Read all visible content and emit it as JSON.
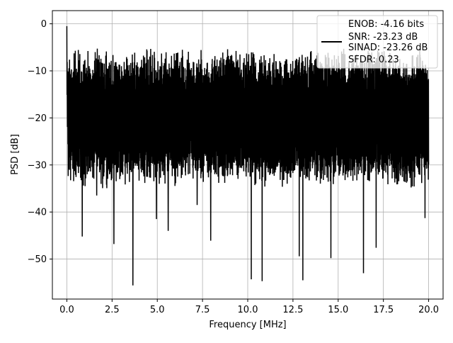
{
  "chart_data": {
    "type": "line",
    "title": "",
    "xlabel": "Frequency [MHz]",
    "ylabel": "PSD [dB]",
    "xlim": [
      -0.8,
      20.8
    ],
    "ylim": [
      -58.5,
      2.8
    ],
    "x_ticks": [
      0.0,
      2.5,
      5.0,
      7.5,
      10.0,
      12.5,
      15.0,
      17.5,
      20.0
    ],
    "x_tick_labels": [
      "0.0",
      "2.5",
      "5.0",
      "7.5",
      "10.0",
      "12.5",
      "15.0",
      "17.5",
      "20.0"
    ],
    "y_ticks": [
      0,
      -10,
      -20,
      -30,
      -40,
      -50
    ],
    "y_tick_labels": [
      "0",
      "−10",
      "−20",
      "−30",
      "−40",
      "−50"
    ],
    "grid": true,
    "legend_position": "top-right",
    "legend_lines": [
      "ENOB: -4.16 bits",
      "SNR: -23.23 dB",
      "SINAD: -23.26 dB",
      "SFDR: 0.23"
    ],
    "series_color": "#000000",
    "series": [
      {
        "x_range": [
          0,
          20
        ],
        "peak": {
          "x": 0.0,
          "y": -0.5
        },
        "upper_envelope_db": -8,
        "lower_envelope_db": -32,
        "deep_nulls": [
          {
            "x": 0.85,
            "y": -45.2
          },
          {
            "x": 1.65,
            "y": -36.5
          },
          {
            "x": 2.6,
            "y": -46.8
          },
          {
            "x": 3.65,
            "y": -55.6
          },
          {
            "x": 4.95,
            "y": -41.5
          },
          {
            "x": 5.6,
            "y": -44.0
          },
          {
            "x": 7.2,
            "y": -38.5
          },
          {
            "x": 7.95,
            "y": -46.1
          },
          {
            "x": 10.2,
            "y": -54.3
          },
          {
            "x": 10.8,
            "y": -54.7
          },
          {
            "x": 12.85,
            "y": -49.4
          },
          {
            "x": 13.05,
            "y": -54.5
          },
          {
            "x": 14.6,
            "y": -49.8
          },
          {
            "x": 16.4,
            "y": -53.0
          },
          {
            "x": 17.1,
            "y": -47.6
          },
          {
            "x": 19.8,
            "y": -41.3
          }
        ]
      }
    ]
  }
}
